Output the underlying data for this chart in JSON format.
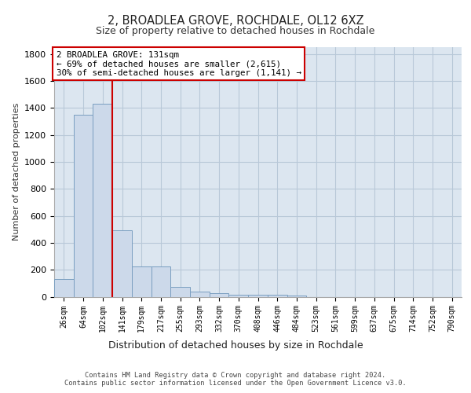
{
  "title1": "2, BROADLEA GROVE, ROCHDALE, OL12 6XZ",
  "title2": "Size of property relative to detached houses in Rochdale",
  "xlabel": "Distribution of detached houses by size in Rochdale",
  "ylabel": "Number of detached properties",
  "bar_labels": [
    "26sqm",
    "64sqm",
    "102sqm",
    "141sqm",
    "179sqm",
    "217sqm",
    "255sqm",
    "293sqm",
    "332sqm",
    "370sqm",
    "408sqm",
    "446sqm",
    "484sqm",
    "523sqm",
    "561sqm",
    "599sqm",
    "637sqm",
    "675sqm",
    "714sqm",
    "752sqm",
    "790sqm"
  ],
  "bar_values": [
    130,
    1350,
    1430,
    490,
    225,
    225,
    75,
    40,
    25,
    15,
    15,
    15,
    10,
    0,
    0,
    0,
    0,
    0,
    0,
    0,
    0
  ],
  "bar_color": "#ccd9ea",
  "bar_edge_color": "#7a9ec0",
  "grid_color": "#b8c8d8",
  "background_color": "#dce6f0",
  "annotation_line_color": "#cc0000",
  "annotation_box_text": "2 BROADLEA GROVE: 131sqm\n← 69% of detached houses are smaller (2,615)\n30% of semi-detached houses are larger (1,141) →",
  "footer_text": "Contains HM Land Registry data © Crown copyright and database right 2024.\nContains public sector information licensed under the Open Government Licence v3.0.",
  "ylim": [
    0,
    1850
  ],
  "yticks": [
    0,
    200,
    400,
    600,
    800,
    1000,
    1200,
    1400,
    1600,
    1800
  ]
}
